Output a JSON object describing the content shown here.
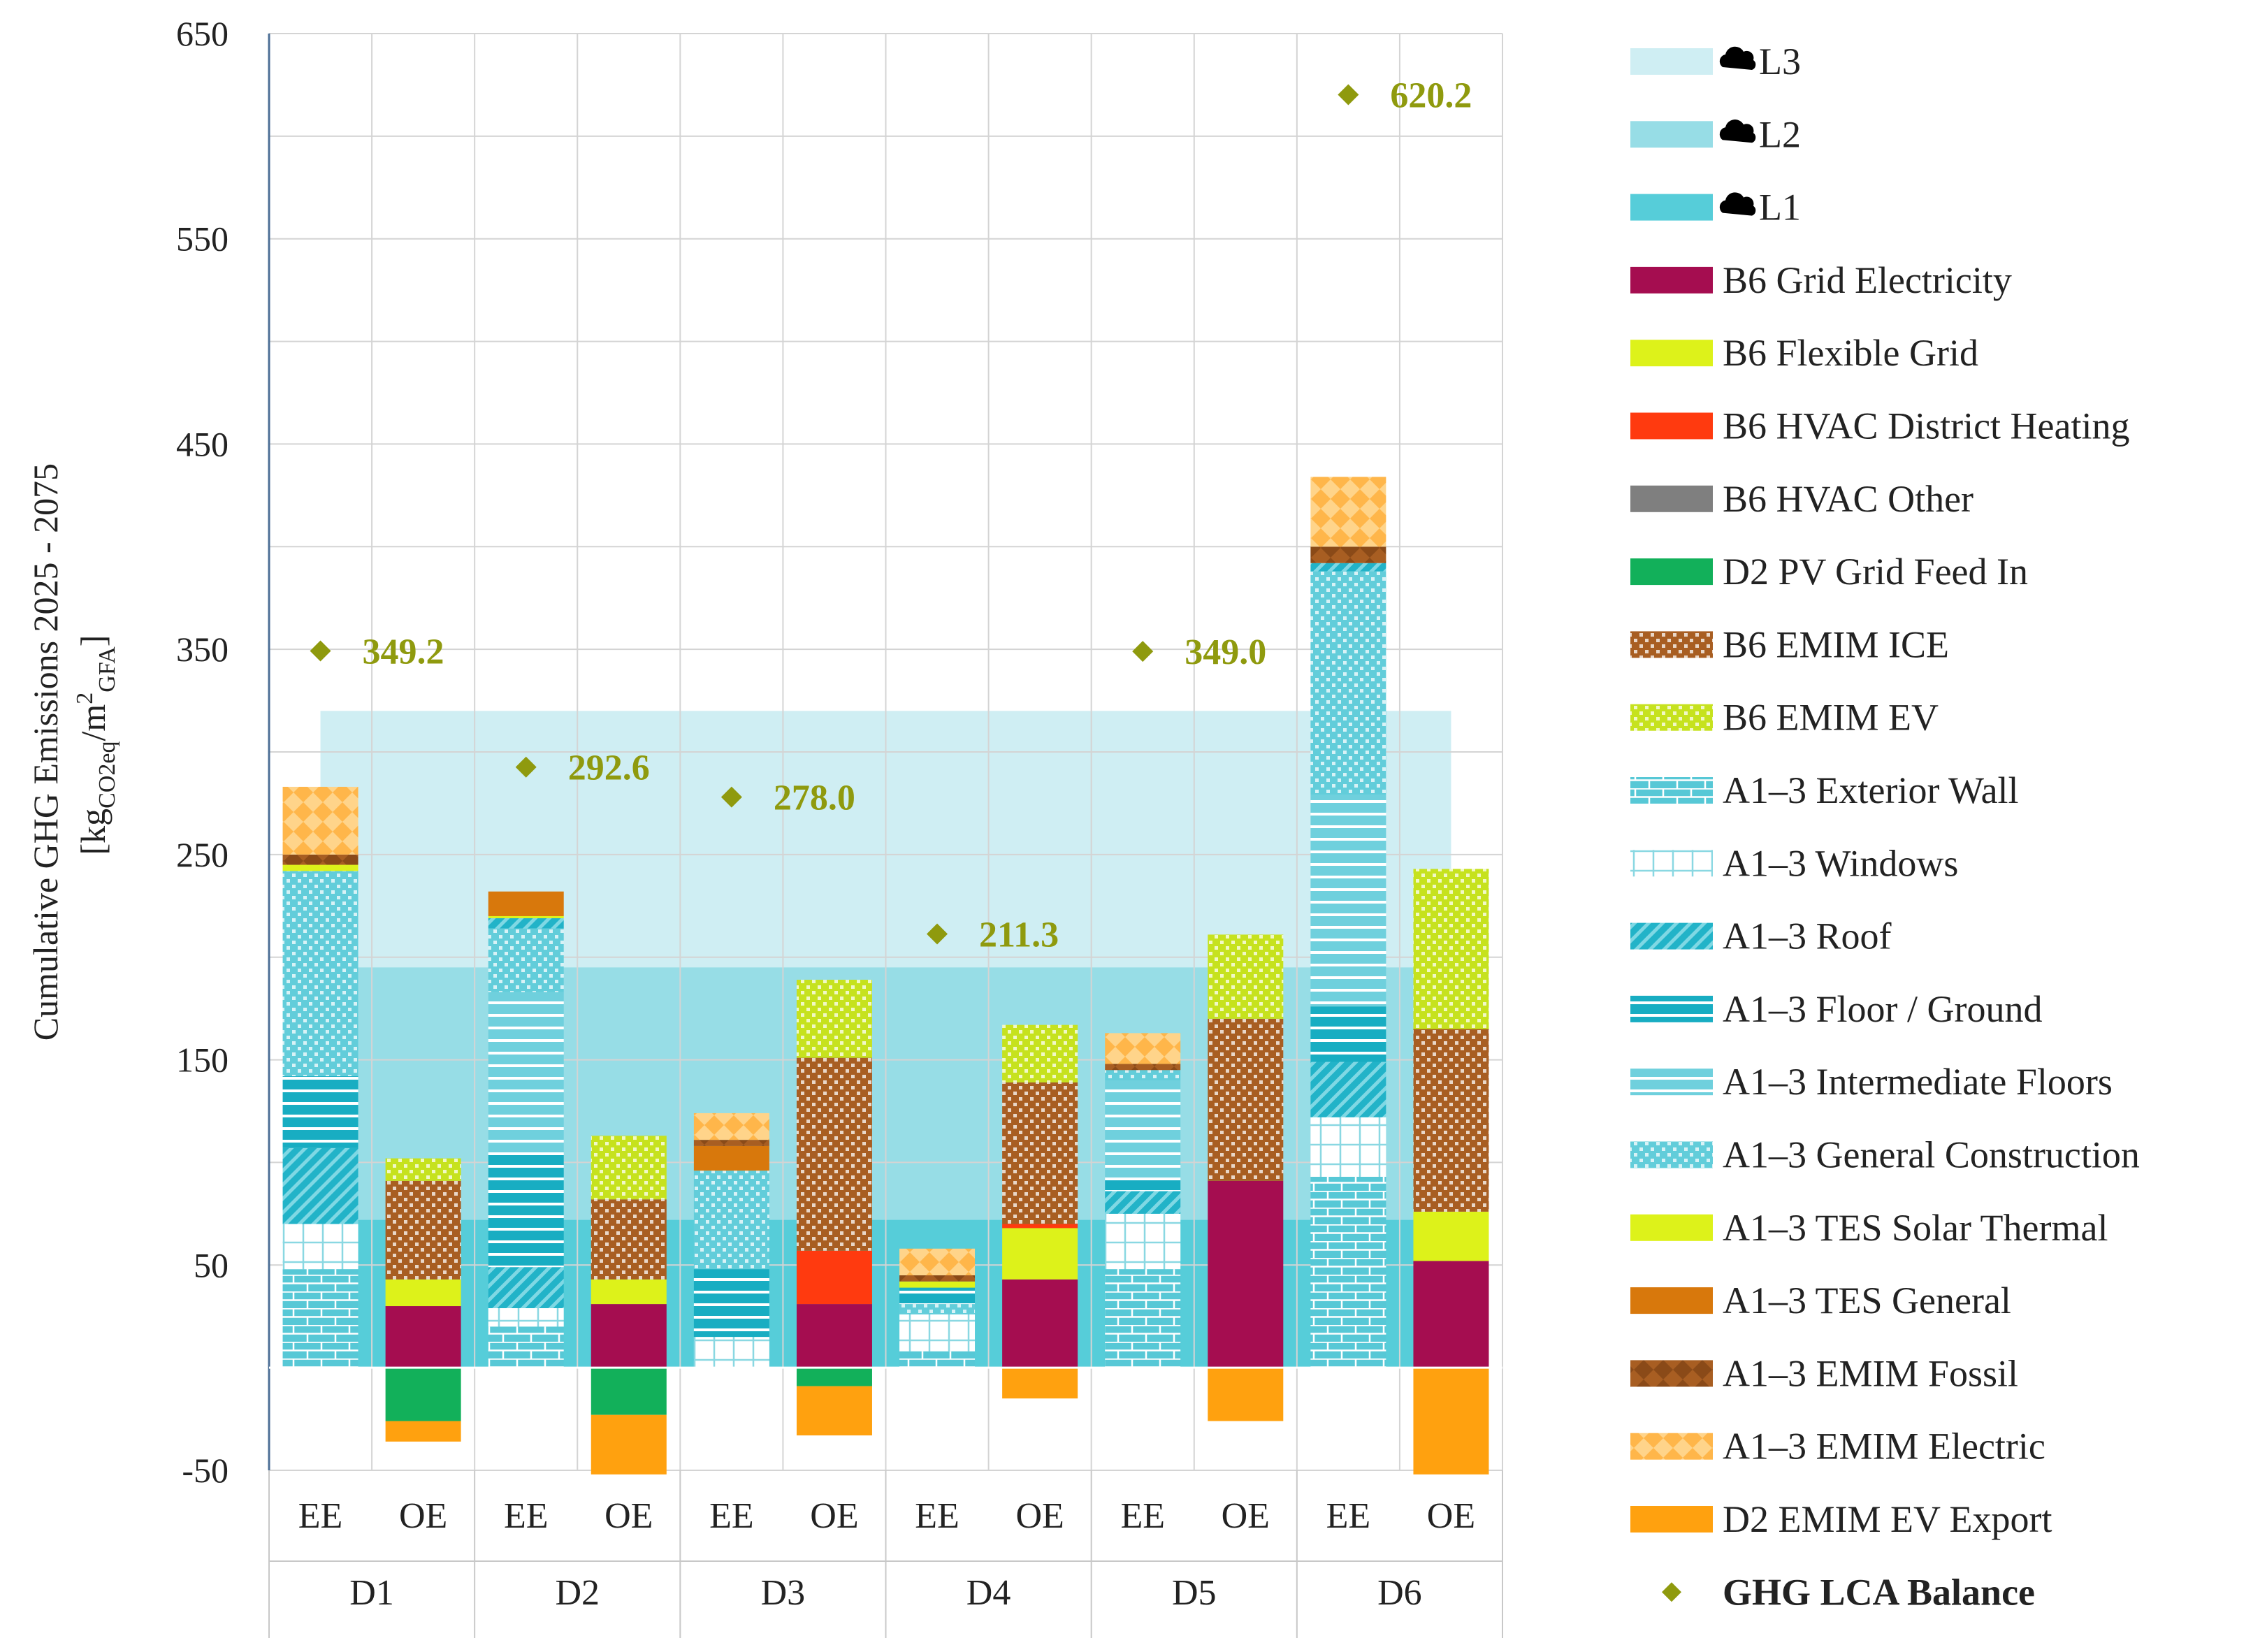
{
  "chart_data": {
    "type": "bar",
    "stacked": true,
    "title": "",
    "ylabel_main": "Cumulative GHG Emissions 2025 - 2075",
    "ylabel_unit_parts": [
      "[kg",
      "CO2eq",
      "/m",
      "2",
      "GFA",
      "]"
    ],
    "ylim": [
      -50,
      650
    ],
    "yticks": [
      650,
      550,
      450,
      350,
      250,
      150,
      50,
      -50
    ],
    "groups": [
      "D1",
      "D2",
      "D3",
      "D4",
      "D5",
      "D6"
    ],
    "subcategories": [
      "EE",
      "OE"
    ],
    "limits": [
      {
        "name": "L3",
        "value": 320,
        "color": "#cfeef3"
      },
      {
        "name": "L2",
        "value": 195,
        "color": "#97dde6"
      },
      {
        "name": "L1",
        "value": 72,
        "color": "#56cdd9"
      }
    ],
    "series": [
      {
        "name": "B6 Grid Electricity",
        "color": "#a50d50",
        "pattern": "solid"
      },
      {
        "name": "B6 Flexible Grid",
        "color": "#ddf21a",
        "pattern": "solid"
      },
      {
        "name": "B6 HVAC District Heating",
        "color": "#ff3a0f",
        "pattern": "solid"
      },
      {
        "name": "B6 HVAC Other",
        "color": "#7f7f7f",
        "pattern": "solid"
      },
      {
        "name": "D2 PV Grid Feed In",
        "color": "#12b05a",
        "pattern": "solid"
      },
      {
        "name": "B6 EMIM ICE",
        "color": "#a85e22",
        "pattern": "checker"
      },
      {
        "name": "B6 EMIM EV",
        "color": "#c6e21e",
        "pattern": "checker"
      },
      {
        "name": "A1–3  Exterior Wall",
        "color": "#57c8d6",
        "pattern": "brick"
      },
      {
        "name": "A1–3  Windows",
        "color": "#8ad8e2",
        "pattern": "windows"
      },
      {
        "name": "A1–3  Roof",
        "color": "#22b3c8",
        "pattern": "diag"
      },
      {
        "name": "A1–3  Floor / Ground",
        "color": "#18adc2",
        "pattern": "hstripes"
      },
      {
        "name": "A1–3  Intermediate Floors",
        "color": "#6fd0dd",
        "pattern": "hstripes"
      },
      {
        "name": "A1–3 General Construction",
        "color": "#62cdda",
        "pattern": "checker"
      },
      {
        "name": "A1–3 TES Solar Thermal",
        "color": "#ddf21a",
        "pattern": "solid"
      },
      {
        "name": "A1–3 TES General",
        "color": "#d8780c",
        "pattern": "solid"
      },
      {
        "name": "A1–3 EMIM Fossil",
        "color": "#a85e22",
        "pattern": "diamond"
      },
      {
        "name": "A1–3 EMIM Electric",
        "color": "#ffb64a",
        "pattern": "diamond"
      },
      {
        "name": "D2 EMIM EV Export",
        "color": "#ffa10f",
        "pattern": "solid"
      }
    ],
    "bars": [
      {
        "group": "D1",
        "sub": "EE",
        "segments": [
          {
            "s": "A1–3  Exterior Wall",
            "v": 48
          },
          {
            "s": "A1–3  Windows",
            "v": 22
          },
          {
            "s": "A1–3  Roof",
            "v": 37
          },
          {
            "s": "A1–3  Floor / Ground",
            "v": 35
          },
          {
            "s": "A1–3 General Construction",
            "v": 100
          },
          {
            "s": "A1–3 TES Solar Thermal",
            "v": 3
          },
          {
            "s": "A1–3 EMIM Fossil",
            "v": 5
          },
          {
            "s": "A1–3 EMIM Electric",
            "v": 33
          }
        ]
      },
      {
        "group": "D1",
        "sub": "OE",
        "segments": [
          {
            "s": "B6 Grid Electricity",
            "v": 30
          },
          {
            "s": "B6 Flexible Grid",
            "v": 13
          },
          {
            "s": "B6 EMIM ICE",
            "v": 48
          },
          {
            "s": "B6 EMIM EV",
            "v": 11
          },
          {
            "s": "D2 PV Grid Feed In",
            "v": -26
          },
          {
            "s": "D2 EMIM EV Export",
            "v": -10
          }
        ]
      },
      {
        "group": "D2",
        "sub": "EE",
        "segments": [
          {
            "s": "A1–3  Exterior Wall",
            "v": 20
          },
          {
            "s": "A1–3  Windows",
            "v": 9
          },
          {
            "s": "A1–3  Roof",
            "v": 20
          },
          {
            "s": "A1–3  Floor / Ground",
            "v": 56
          },
          {
            "s": "A1–3  Intermediate Floors",
            "v": 78
          },
          {
            "s": "A1–3 General Construction",
            "v": 31
          },
          {
            "s": "A1–3  Roof",
            "v": 5
          },
          {
            "s": "A1–3 TES Solar Thermal",
            "v": 1
          },
          {
            "s": "A1–3 TES General",
            "v": 12
          }
        ]
      },
      {
        "group": "D2",
        "sub": "OE",
        "segments": [
          {
            "s": "B6 Grid Electricity",
            "v": 31
          },
          {
            "s": "B6 Flexible Grid",
            "v": 12
          },
          {
            "s": "B6 EMIM ICE",
            "v": 39
          },
          {
            "s": "B6 EMIM EV",
            "v": 31
          },
          {
            "s": "D2 PV Grid Feed In",
            "v": -23
          },
          {
            "s": "D2 EMIM EV Export",
            "v": -29
          }
        ]
      },
      {
        "group": "D3",
        "sub": "EE",
        "segments": [
          {
            "s": "A1–3  Windows",
            "v": 15
          },
          {
            "s": "A1–3  Floor / Ground",
            "v": 33
          },
          {
            "s": "A1–3 General Construction",
            "v": 48
          },
          {
            "s": "A1–3 TES General",
            "v": 12
          },
          {
            "s": "A1–3 EMIM Fossil",
            "v": 3
          },
          {
            "s": "A1–3 EMIM Electric",
            "v": 13
          }
        ]
      },
      {
        "group": "D3",
        "sub": "OE",
        "segments": [
          {
            "s": "B6 Grid Electricity",
            "v": 31
          },
          {
            "s": "B6 HVAC District Heating",
            "v": 26
          },
          {
            "s": "B6 EMIM ICE",
            "v": 94
          },
          {
            "s": "B6 EMIM EV",
            "v": 38
          },
          {
            "s": "D2 PV Grid Feed In",
            "v": -9
          },
          {
            "s": "D2 EMIM EV Export",
            "v": -24
          }
        ]
      },
      {
        "group": "D4",
        "sub": "EE",
        "segments": [
          {
            "s": "A1–3  Exterior Wall",
            "v": 8
          },
          {
            "s": "A1–3  Windows",
            "v": 18
          },
          {
            "s": "A1–3 General Construction",
            "v": 5
          },
          {
            "s": "A1–3  Floor / Ground",
            "v": 8
          },
          {
            "s": "A1–3 TES Solar Thermal",
            "v": 3
          },
          {
            "s": "A1–3 EMIM Fossil",
            "v": 3
          },
          {
            "s": "A1–3 EMIM Electric",
            "v": 13
          }
        ]
      },
      {
        "group": "D4",
        "sub": "OE",
        "segments": [
          {
            "s": "B6 Grid Electricity",
            "v": 43
          },
          {
            "s": "B6 Flexible Grid",
            "v": 25
          },
          {
            "s": "B6 HVAC District Heating",
            "v": 2
          },
          {
            "s": "B6 EMIM ICE",
            "v": 69
          },
          {
            "s": "B6 EMIM EV",
            "v": 28
          },
          {
            "s": "D2 EMIM EV Export",
            "v": -15
          }
        ]
      },
      {
        "group": "D5",
        "sub": "EE",
        "segments": [
          {
            "s": "A1–3  Exterior Wall",
            "v": 48
          },
          {
            "s": "A1–3  Windows",
            "v": 27
          },
          {
            "s": "A1–3  Roof",
            "v": 11
          },
          {
            "s": "A1–3  Floor / Ground",
            "v": 6
          },
          {
            "s": "A1–3  Intermediate Floors",
            "v": 48
          },
          {
            "s": "A1–3 General Construction",
            "v": 5
          },
          {
            "s": "A1–3 EMIM Fossil",
            "v": 3
          },
          {
            "s": "A1–3 EMIM Electric",
            "v": 15
          }
        ]
      },
      {
        "group": "D5",
        "sub": "OE",
        "segments": [
          {
            "s": "B6 Grid Electricity",
            "v": 91
          },
          {
            "s": "B6 EMIM ICE",
            "v": 79
          },
          {
            "s": "B6 EMIM EV",
            "v": 41
          },
          {
            "s": "D2 EMIM EV Export",
            "v": -26
          }
        ]
      },
      {
        "group": "D6",
        "sub": "EE",
        "segments": [
          {
            "s": "A1–3  Exterior Wall",
            "v": 93
          },
          {
            "s": "A1–3  Windows",
            "v": 29
          },
          {
            "s": "A1–3  Roof",
            "v": 27
          },
          {
            "s": "A1–3  Floor / Ground",
            "v": 27
          },
          {
            "s": "A1–3  Intermediate Floors",
            "v": 103
          },
          {
            "s": "A1–3 General Construction",
            "v": 109
          },
          {
            "s": "A1–3  Roof",
            "v": 4
          },
          {
            "s": "A1–3 EMIM Fossil",
            "v": 8
          },
          {
            "s": "A1–3 EMIM Electric",
            "v": 34
          }
        ]
      },
      {
        "group": "D6",
        "sub": "OE",
        "segments": [
          {
            "s": "B6 Grid Electricity",
            "v": 52
          },
          {
            "s": "B6 Flexible Grid",
            "v": 24
          },
          {
            "s": "B6 EMIM ICE",
            "v": 89
          },
          {
            "s": "B6 EMIM EV",
            "v": 78
          },
          {
            "s": "D2 EMIM EV Export",
            "v": -52
          }
        ]
      }
    ],
    "balance": {
      "name": "GHG LCA Balance",
      "color": "#8f9a0e",
      "points": [
        {
          "group": "D1",
          "value": 349.2,
          "label": "349.2"
        },
        {
          "group": "D2",
          "value": 292.6,
          "label": "292.6"
        },
        {
          "group": "D3",
          "value": 278.0,
          "label": "278.0"
        },
        {
          "group": "D4",
          "value": 211.3,
          "label": "211.3"
        },
        {
          "group": "D5",
          "value": 349.0,
          "label": "349.0"
        },
        {
          "group": "D6",
          "value": 620.2,
          "label": "620.2"
        }
      ]
    },
    "legend_position": "right"
  }
}
